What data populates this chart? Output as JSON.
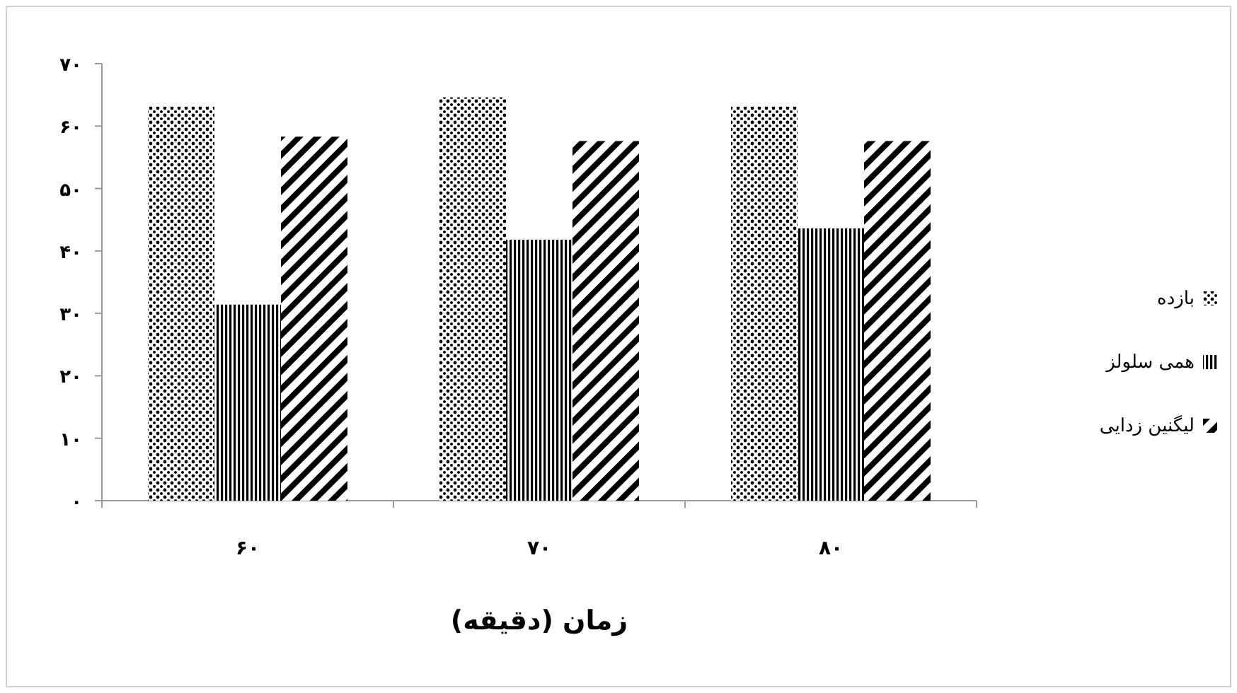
{
  "chart_data": {
    "type": "bar",
    "xlabel": "زمان (دقیقه)",
    "categories": [
      "۶۰",
      "۷۰",
      "۸۰"
    ],
    "series": [
      {
        "name": "بازده",
        "color": "#000000",
        "values": [
          63.1,
          64.6,
          63.1
        ]
      },
      {
        "name": "همی سلولز",
        "color": "#000000",
        "values": [
          31.4,
          41.8,
          43.6
        ]
      },
      {
        "name": "لیگنین زدایی",
        "color": "#000000",
        "values": [
          58.3,
          57.6,
          57.6
        ]
      }
    ],
    "ylim": [
      0,
      70
    ],
    "yticks": [
      {
        "value": 0,
        "label": "۰"
      },
      {
        "value": 10,
        "label": "۱۰"
      },
      {
        "value": 20,
        "label": "۲۰"
      },
      {
        "value": 30,
        "label": "۳۰"
      },
      {
        "value": 40,
        "label": "۴۰"
      },
      {
        "value": 50,
        "label": "۵۰"
      },
      {
        "value": 60,
        "label": "۶۰"
      },
      {
        "value": 70,
        "label": "۷۰"
      }
    ],
    "grid": false,
    "legend": "right"
  }
}
